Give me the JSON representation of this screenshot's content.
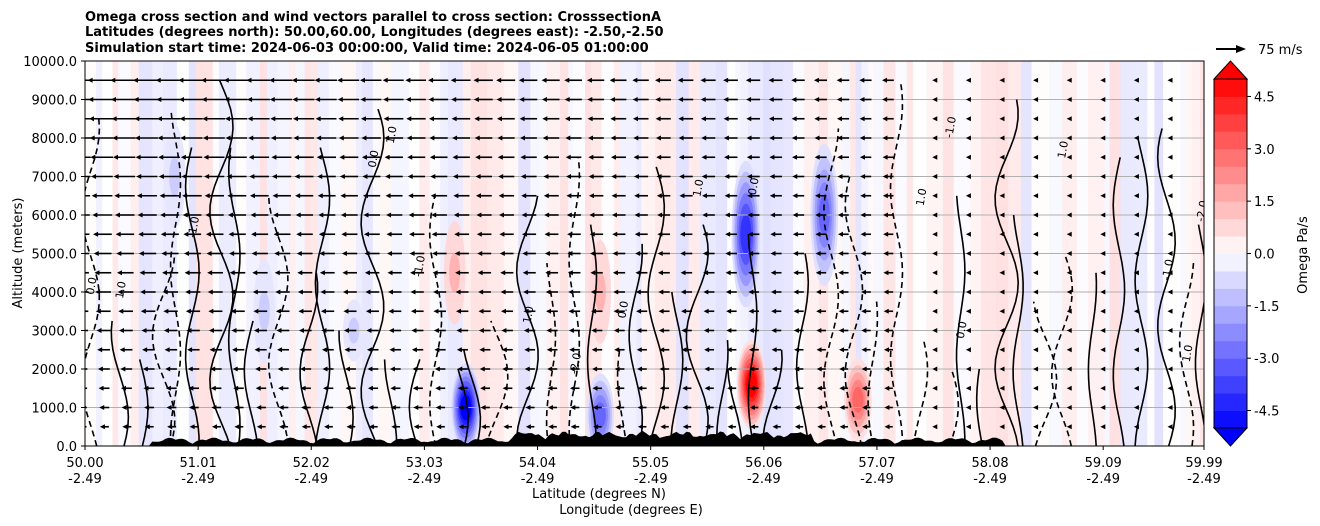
{
  "chart_data": {
    "type": "heatmap",
    "title_lines": [
      "Omega cross section and wind vectors parallel to cross section: CrosssectionA",
      "Latitudes (degrees north): 50.00,60.00, Longitudes (degrees east): -2.50,-2.50",
      "Simulation start time: 2024-06-03 00:00:00, Valid time: 2024-06-05 01:00:00"
    ],
    "ylabel": "Altitude (meters)",
    "xlabel_line1": "Latitude (degrees N)",
    "xlabel_line2": "Longitude (degrees E)",
    "y_ticks": [
      "0.0",
      "1000.0",
      "2000.0",
      "3000.0",
      "4000.0",
      "5000.0",
      "6000.0",
      "7000.0",
      "8000.0",
      "9000.0",
      "10000.0"
    ],
    "ylim": [
      0,
      10000
    ],
    "x_ticks": [
      {
        "lat": "50.00",
        "lon": "-2.49"
      },
      {
        "lat": "51.01",
        "lon": "-2.49"
      },
      {
        "lat": "52.02",
        "lon": "-2.49"
      },
      {
        "lat": "53.03",
        "lon": "-2.49"
      },
      {
        "lat": "54.04",
        "lon": "-2.49"
      },
      {
        "lat": "55.05",
        "lon": "-2.49"
      },
      {
        "lat": "56.06",
        "lon": "-2.49"
      },
      {
        "lat": "57.07",
        "lon": "-2.49"
      },
      {
        "lat": "58.08",
        "lon": "-2.49"
      },
      {
        "lat": "59.09",
        "lon": "-2.49"
      },
      {
        "lat": "59.99",
        "lon": "-2.49"
      }
    ],
    "xlim": [
      50.0,
      59.99
    ],
    "grid": "horizontal",
    "colorbar": {
      "label": "Omega Pa/s",
      "ticks": [
        "-4.5",
        "-3.0",
        "-1.5",
        "0.0",
        "1.5",
        "3.0",
        "4.5"
      ],
      "range": [
        -5,
        5
      ],
      "colormap": "bwr"
    },
    "vector_key": {
      "value": "75 m/s"
    },
    "contour_labels": [
      "0.0",
      "1.0",
      "-1.0",
      "0.0",
      "1.0",
      "-1.0",
      "1.0",
      "-2.0",
      "0.0",
      "1.0"
    ],
    "omega_features": [
      {
        "lat": 53.4,
        "alt": 1000,
        "value": -5.0
      },
      {
        "lat": 53.3,
        "alt": 4500,
        "value": 1.5
      },
      {
        "lat": 54.6,
        "alt": 4000,
        "value": 1.5
      },
      {
        "lat": 54.6,
        "alt": 800,
        "value": -3.0
      },
      {
        "lat": 55.9,
        "alt": 5500,
        "value": -4.0
      },
      {
        "lat": 55.95,
        "alt": 1600,
        "value": 5.0
      },
      {
        "lat": 56.9,
        "alt": 1200,
        "value": 3.0
      },
      {
        "lat": 56.6,
        "alt": 6000,
        "value": -3.0
      },
      {
        "lat": 52.4,
        "alt": 3000,
        "value": -1.0
      },
      {
        "lat": 51.6,
        "alt": 3500,
        "value": -1.0
      },
      {
        "lat": 50.8,
        "alt": 7000,
        "value": -1.0
      }
    ]
  }
}
